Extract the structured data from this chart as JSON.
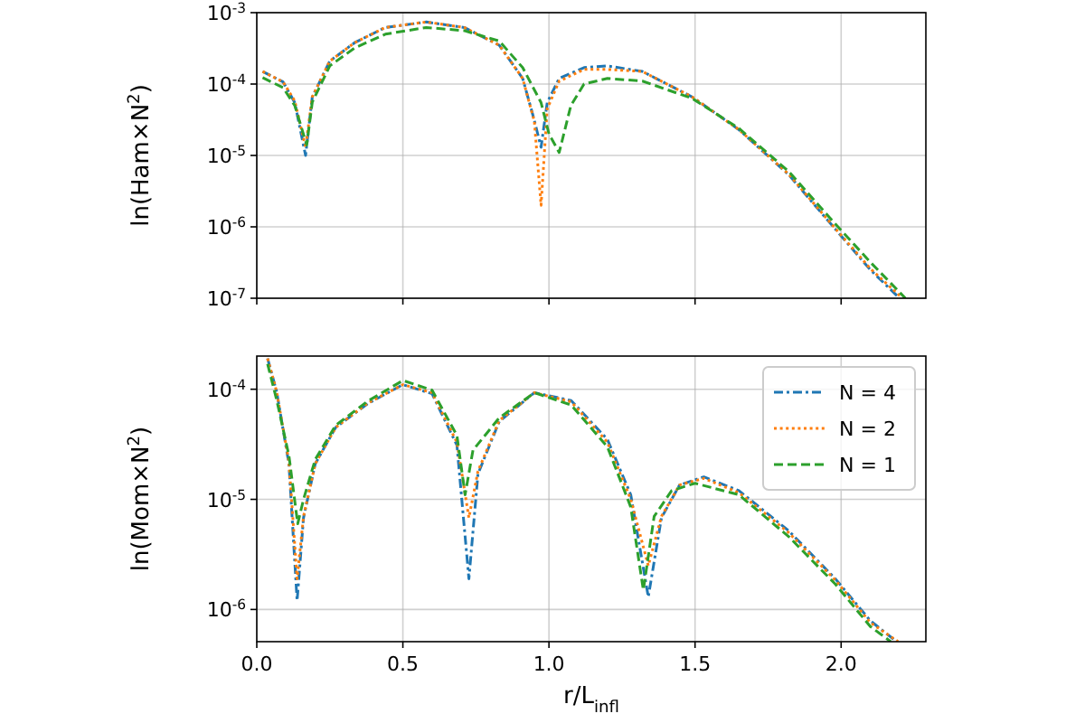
{
  "chart_data": [
    {
      "type": "line",
      "ylabel": "ln(Ham×N$^{2}$)",
      "log": true,
      "grid": true,
      "tick_labels": "y",
      "xlim": [
        0,
        2.29
      ],
      "xticks": [
        0,
        0.5,
        1,
        1.5,
        2
      ],
      "ylim": [
        1e-07,
        0.001
      ],
      "yticks": [
        {
          "value": 1e-07,
          "label": "10$^{-7}$"
        },
        {
          "value": 1e-06,
          "label": "10$^{-6}$"
        },
        {
          "value": 1e-05,
          "label": "10$^{-5}$"
        },
        {
          "value": 0.0001,
          "label": "10$^{-4}$"
        },
        {
          "value": 0.001,
          "label": "10$^{-3}$"
        }
      ],
      "series": [
        {
          "color": "#1f77b4",
          "line_style": "dashdot",
          "x": [
            0.02,
            0.09,
            0.13,
            0.167,
            0.19,
            0.25,
            0.335,
            0.44,
            0.58,
            0.71,
            0.83,
            0.91,
            0.95,
            0.973,
            0.994,
            1.035,
            1.12,
            1.2,
            1.32,
            1.49,
            1.65,
            1.82,
            1.98,
            2.1,
            2.2
          ],
          "values": [
            0.00015,
            0.000107,
            5.5e-05,
            1e-05,
            6.6e-05,
            0.00021,
            0.00038,
            0.00062,
            0.00074,
            0.00062,
            0.00035,
            0.00012,
            3.1e-05,
            1.3e-05,
            5.5e-05,
            0.00012,
            0.00017,
            0.00018,
            0.00015,
            6.6e-05,
            2.3e-05,
            5.4e-06,
            9.3e-07,
            2.5e-07,
            1e-07
          ]
        },
        {
          "color": "#ff7f0e",
          "line_style": "dotted",
          "x": [
            0.02,
            0.09,
            0.13,
            0.167,
            0.19,
            0.25,
            0.335,
            0.44,
            0.58,
            0.71,
            0.83,
            0.91,
            0.95,
            0.973,
            0.994,
            1.035,
            1.12,
            1.2,
            1.32,
            1.49,
            1.65,
            1.82,
            1.98,
            2.1,
            2.21
          ],
          "values": [
            0.00015,
            0.000107,
            5.8e-05,
            1.3e-05,
            6.6e-05,
            0.00021,
            0.00038,
            0.00062,
            0.00074,
            0.00062,
            0.00035,
            0.00012,
            3e-05,
            2e-06,
            4.5e-05,
            0.00011,
            0.00016,
            0.00016,
            0.00015,
            6.6e-05,
            2.3e-05,
            5.5e-06,
            9.5e-07,
            2.6e-07,
            1e-07
          ]
        },
        {
          "color": "#2ca02c",
          "line_style": "dashed",
          "x": [
            0.02,
            0.09,
            0.13,
            0.171,
            0.19,
            0.25,
            0.335,
            0.44,
            0.58,
            0.71,
            0.83,
            0.91,
            0.973,
            1.0,
            1.035,
            1.075,
            1.12,
            1.2,
            1.32,
            1.49,
            1.65,
            1.82,
            1.98,
            2.1,
            2.22
          ],
          "values": [
            0.000123,
            8.9e-05,
            5e-05,
            1.4e-05,
            5.6e-05,
            0.00018,
            0.00032,
            0.0005,
            0.00062,
            0.00056,
            0.0004,
            0.00017,
            5.5e-05,
            2e-05,
            1.1e-05,
            5e-05,
            0.0001,
            0.00012,
            0.00011,
            6.3e-05,
            2.4e-05,
            6e-06,
            1.1e-06,
            3.2e-07,
            1e-07
          ]
        }
      ]
    },
    {
      "type": "line",
      "xlabel": "r/L$_{infl}$",
      "ylabel": "ln(Mom×N$^{2}$)",
      "log": true,
      "grid": true,
      "legend": "top right",
      "xlim": [
        0,
        2.29
      ],
      "xticks": [
        {
          "value": 0,
          "label": "0.0"
        },
        0.5,
        {
          "value": 1,
          "label": "1.0"
        },
        1.5,
        {
          "value": 2,
          "label": "2.0"
        }
      ],
      "ylim": [
        5.1e-07,
        0.0002
      ],
      "yticks": [
        {
          "value": 1e-06,
          "label": "10$^{-6}$"
        },
        {
          "value": 1e-05,
          "label": "10$^{-5}$"
        },
        {
          "value": 0.0001,
          "label": "10$^{-4}$"
        }
      ],
      "series": [
        {
          "name": "N = 4",
          "color": "#1f77b4",
          "line_style": "dashdot",
          "x": [
            0.037,
            0.068,
            0.11,
            0.138,
            0.16,
            0.2,
            0.27,
            0.38,
            0.5,
            0.6,
            0.685,
            0.726,
            0.757,
            0.83,
            0.95,
            1.076,
            1.2,
            1.28,
            1.34,
            1.385,
            1.447,
            1.53,
            1.65,
            1.82,
            1.98,
            2.1,
            2.19
          ],
          "values": [
            0.00019,
            9.5e-05,
            2.1e-05,
            1.2e-06,
            6.8e-06,
            2.1e-05,
            4.5e-05,
            7.4e-05,
            0.00011,
            9.1e-05,
            3.1e-05,
            1.9e-06,
            1.7e-05,
            5.1e-05,
            9.3e-05,
            7.9e-05,
            3.5e-05,
            1.1e-05,
            1.3e-06,
            6.8e-06,
            1.35e-05,
            1.6e-05,
            1.2e-05,
            5.2e-06,
            1.9e-06,
            7.9e-07,
            5.1e-07
          ]
        },
        {
          "name": "N = 2",
          "color": "#ff7f0e",
          "line_style": "dotted",
          "x": [
            0.037,
            0.068,
            0.11,
            0.138,
            0.16,
            0.2,
            0.27,
            0.38,
            0.5,
            0.6,
            0.685,
            0.726,
            0.757,
            0.83,
            0.95,
            1.076,
            1.2,
            1.28,
            1.34,
            1.385,
            1.447,
            1.53,
            1.65,
            1.82,
            1.98,
            2.1,
            2.195
          ],
          "values": [
            0.00019,
            9.5e-05,
            2.2e-05,
            1.9e-06,
            7e-06,
            2.1e-05,
            4.5e-05,
            7.5e-05,
            0.00011,
            9.3e-05,
            3.3e-05,
            6.8e-06,
            1.8e-05,
            5.2e-05,
            9.3e-05,
            7.7e-05,
            3.3e-05,
            1e-05,
            2.5e-06,
            7e-06,
            1.35e-05,
            1.55e-05,
            1.15e-05,
            5e-06,
            1.85e-06,
            7.6e-07,
            5.1e-07
          ]
        },
        {
          "name": "N = 1",
          "color": "#2ca02c",
          "line_style": "dashed",
          "x": [
            0.037,
            0.068,
            0.11,
            0.14,
            0.16,
            0.2,
            0.27,
            0.38,
            0.5,
            0.6,
            0.685,
            0.713,
            0.74,
            0.83,
            0.95,
            1.076,
            1.2,
            1.28,
            1.323,
            1.36,
            1.42,
            1.5,
            1.65,
            1.82,
            1.98,
            2.1,
            2.17
          ],
          "values": [
            0.00017,
            8e-05,
            2.5e-05,
            6e-06,
            1e-05,
            2.3e-05,
            4.7e-05,
            7.8e-05,
            0.00012,
            9.8e-05,
            3.8e-05,
            1.1e-05,
            2.8e-05,
            5.5e-05,
            9.3e-05,
            7.2e-05,
            3e-05,
            8.5e-06,
            1.5e-06,
            7e-06,
            1.2e-05,
            1.4e-05,
            1.1e-05,
            4.6e-06,
            1.7e-06,
            7e-07,
            5.1e-07
          ]
        }
      ]
    }
  ]
}
